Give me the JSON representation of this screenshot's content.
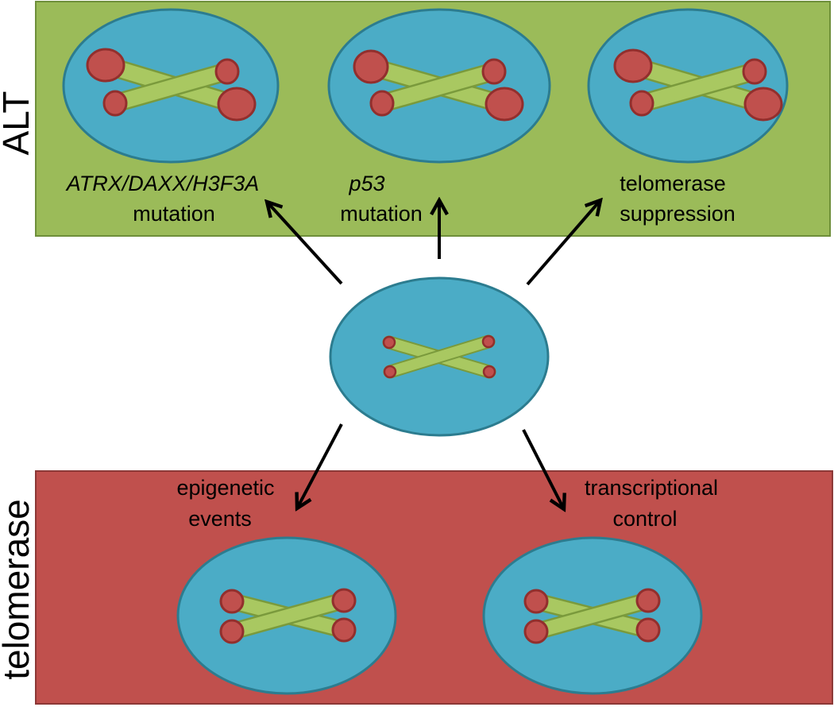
{
  "colors": {
    "alt_panel": "#9bbb59",
    "alt_panel_border": "#6e8f3a",
    "telomerase_panel": "#c0504d",
    "telomerase_panel_border": "#8c3836",
    "nucleus_fill": "#4bacc6",
    "nucleus_border": "#2c7c8f",
    "chromosome_arm": "#a9c861",
    "chromosome_arm_border": "#7a9a3c",
    "telomere_fill": "#c0504d",
    "telomere_border": "#922f2d",
    "arrow": "#000000"
  },
  "panels": {
    "alt": {
      "side_label": "ALT",
      "labels": {
        "atrx": {
          "line1": "ATRX/DAXX/H3F3A",
          "line2": "mutation"
        },
        "p53": {
          "line1": "p53",
          "line2": "mutation"
        },
        "telomerase_suppression": {
          "line1": "telomerase",
          "line2": "suppression"
        }
      }
    },
    "telomerase": {
      "side_label": "telomerase",
      "labels": {
        "epigenetic": {
          "line1": "epigenetic",
          "line2": "events"
        },
        "transcriptional": {
          "line1": "transcriptional",
          "line2": "control"
        }
      }
    }
  },
  "cells": {
    "alt_cells": [
      {
        "id": "alt-cell-1",
        "telomere_state": "lengthened heterogeneous"
      },
      {
        "id": "alt-cell-2",
        "telomere_state": "lengthened heterogeneous"
      },
      {
        "id": "alt-cell-3",
        "telomere_state": "lengthened heterogeneous"
      }
    ],
    "center_cell": {
      "id": "center-cell",
      "telomere_state": "short"
    },
    "telomerase_cells": [
      {
        "id": "telomerase-cell-1",
        "telomere_state": "maintained uniform"
      },
      {
        "id": "telomerase-cell-2",
        "telomere_state": "maintained uniform"
      }
    ]
  }
}
